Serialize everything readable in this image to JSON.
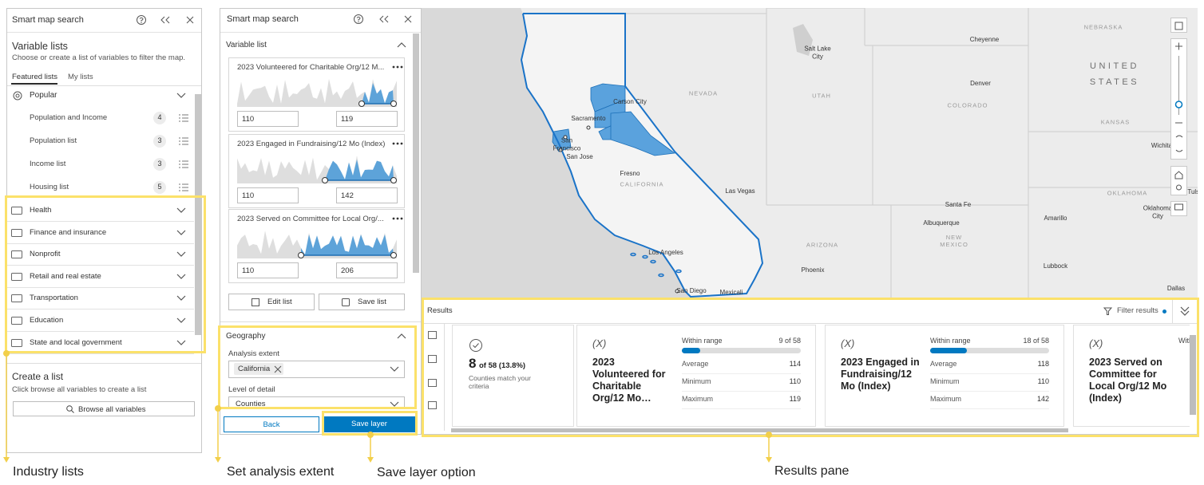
{
  "left_panel": {
    "title": "Smart map search",
    "heading": "Variable lists",
    "description": "Choose or create a list of variables to filter the map.",
    "tabs": [
      "Featured lists",
      "My lists"
    ],
    "popular": "Popular",
    "popular_items": [
      {
        "label": "Population and Income",
        "count": 4
      },
      {
        "label": "Population list",
        "count": 3
      },
      {
        "label": "Income list",
        "count": 3
      },
      {
        "label": "Housing list",
        "count": 5
      }
    ],
    "categories": [
      "Health",
      "Finance and insurance",
      "Nonprofit",
      "Retail and real estate",
      "Transportation",
      "Education",
      "State and local government"
    ],
    "create_title": "Create a list",
    "create_description": "Click browse all variables to create a list",
    "browse_button": "Browse all variables"
  },
  "middle_panel": {
    "title": "Smart map search",
    "section": "Variable list",
    "variables": [
      {
        "title": "2023 Volunteered for Charitable Org/12 M...",
        "min": 110,
        "max": 119
      },
      {
        "title": "2023 Engaged in Fundraising/12 Mo (Index)",
        "min": 110,
        "max": 142
      },
      {
        "title": "2023 Served on Committee for Local Org/...",
        "min": 110,
        "max": 206
      }
    ],
    "edit_button": "Edit list",
    "save_list_button": "Save list",
    "geography": {
      "title": "Geography",
      "extent_label": "Analysis extent",
      "extent": "California",
      "detail_label": "Level of detail",
      "detail": "Counties"
    },
    "back_button": "Back",
    "save_layer_button": "Save layer"
  },
  "map": {
    "labels": [
      {
        "text": "Cheyenne",
        "kind": "city"
      },
      {
        "text": "Salt Lake City",
        "kind": "city"
      },
      {
        "text": "UTAH",
        "kind": "state"
      },
      {
        "text": "NEVADA",
        "kind": "state"
      },
      {
        "text": "Carson City",
        "kind": "city"
      },
      {
        "text": "Sacramento",
        "kind": "city"
      },
      {
        "text": "San Francisco",
        "kind": "city"
      },
      {
        "text": "San Jose",
        "kind": "city"
      },
      {
        "text": "Fresno",
        "kind": "city"
      },
      {
        "text": "CALIFORNIA",
        "kind": "state"
      },
      {
        "text": "Las Vegas",
        "kind": "city"
      },
      {
        "text": "Denver",
        "kind": "city"
      },
      {
        "text": "COLORADO",
        "kind": "state"
      },
      {
        "text": "NEBRASKA",
        "kind": "state"
      },
      {
        "text": "UNITED STATES",
        "kind": "country"
      },
      {
        "text": "KANSAS",
        "kind": "state"
      },
      {
        "text": "Wichita",
        "kind": "city"
      },
      {
        "text": "Santa Fe",
        "kind": "city"
      },
      {
        "text": "Albuquerque",
        "kind": "city"
      },
      {
        "text": "NEW MEXICO",
        "kind": "state"
      },
      {
        "text": "OKLAHOMA",
        "kind": "state"
      },
      {
        "text": "Oklahoma City",
        "kind": "city"
      },
      {
        "text": "Tulsa",
        "kind": "city"
      },
      {
        "text": "Amarillo",
        "kind": "city"
      },
      {
        "text": "ARIZONA",
        "kind": "state"
      },
      {
        "text": "Phoenix",
        "kind": "city"
      },
      {
        "text": "Lubbock",
        "kind": "city"
      },
      {
        "text": "Los Angeles",
        "kind": "city"
      },
      {
        "text": "San Diego",
        "kind": "city"
      },
      {
        "text": "Mexicali",
        "kind": "city"
      },
      {
        "text": "Dallas",
        "kind": "city"
      }
    ]
  },
  "results": {
    "title": "Results",
    "filter": "Filter results",
    "count": 8,
    "count_detail": {
      "value": 58,
      "label": "of 58 (13.8%)"
    },
    "count_caption": "Counties match your criteria",
    "variables": [
      {
        "symbol": "(X)",
        "title": "2023 Volunteered for Charitable Org/12 Mo…",
        "within_label": "Within range",
        "within": {
          "value": 9,
          "label": "9 of 58"
        },
        "stats": [
          {
            "label": "Average",
            "value": 114
          },
          {
            "label": "Minimum",
            "value": 110
          },
          {
            "label": "Maximum",
            "value": 119
          }
        ]
      },
      {
        "symbol": "(X)",
        "title": "2023 Engaged in Fundraising/12 Mo (Index)",
        "within_label": "Within range",
        "within": {
          "value": 18,
          "label": "18 of 58"
        },
        "stats": [
          {
            "label": "Average",
            "value": 118
          },
          {
            "label": "Minimum",
            "value": 110
          },
          {
            "label": "Maximum",
            "value": 142
          }
        ]
      },
      {
        "symbol": "(X)",
        "title": "2023 Served on Committee for Local Org/12 Mo (Index)",
        "within_label": "Within range"
      }
    ]
  },
  "annotations": [
    "Industry lists",
    "Set analysis extent",
    "Save layer option",
    "Results pane"
  ]
}
